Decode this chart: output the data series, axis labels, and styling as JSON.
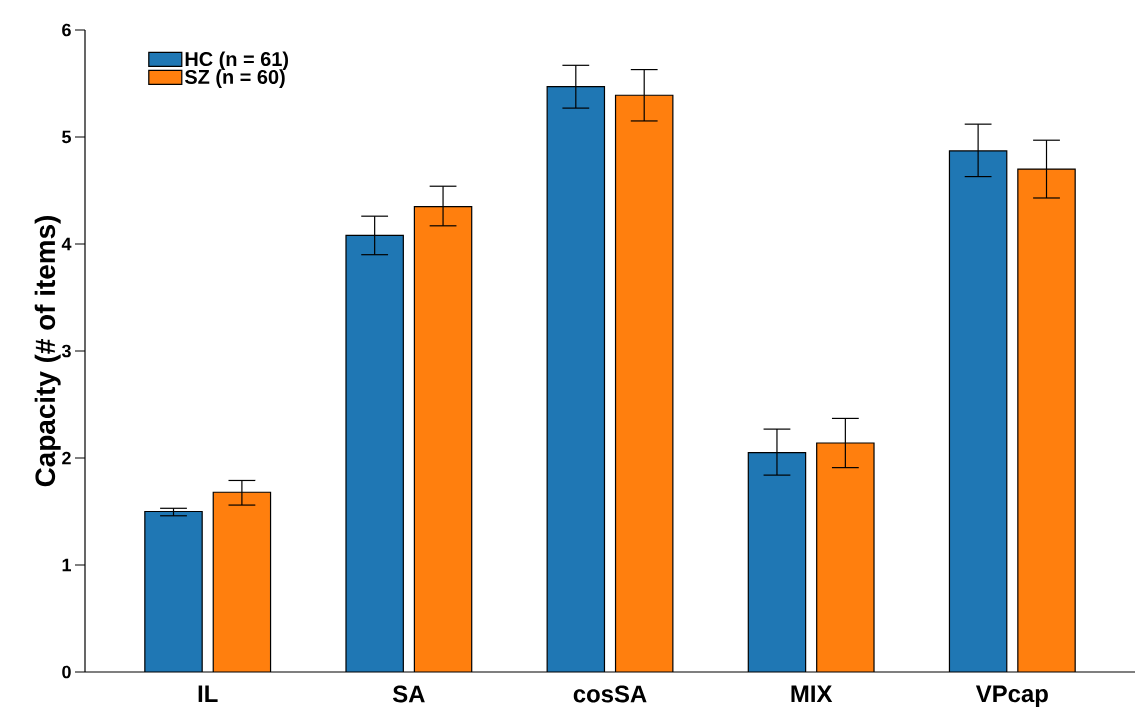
{
  "chart_data": {
    "type": "bar",
    "ylabel": "Capacity (# of items)",
    "categories": [
      "IL",
      "SA",
      "cosSA",
      "MIX",
      "VPcap"
    ],
    "series": [
      {
        "name": "HC (n = 61)",
        "color": "#1f77b4",
        "values": [
          1.5,
          4.08,
          5.47,
          2.05,
          4.87
        ],
        "errors": [
          [
            1.46,
            1.53
          ],
          [
            3.9,
            4.26
          ],
          [
            5.27,
            5.67
          ],
          [
            1.84,
            2.27
          ],
          [
            4.63,
            5.12
          ]
        ]
      },
      {
        "name": "SZ (n = 60)",
        "color": "#ff7f0e",
        "values": [
          1.68,
          4.35,
          5.39,
          2.14,
          4.7
        ],
        "errors": [
          [
            1.56,
            1.79
          ],
          [
            4.17,
            4.54
          ],
          [
            5.15,
            5.63
          ],
          [
            1.91,
            2.37
          ],
          [
            4.43,
            4.97
          ]
        ]
      }
    ],
    "ylim": [
      0,
      6
    ],
    "yticks": [
      0,
      1,
      2,
      3,
      4,
      5,
      6
    ],
    "grid": false,
    "legend": "top left"
  }
}
